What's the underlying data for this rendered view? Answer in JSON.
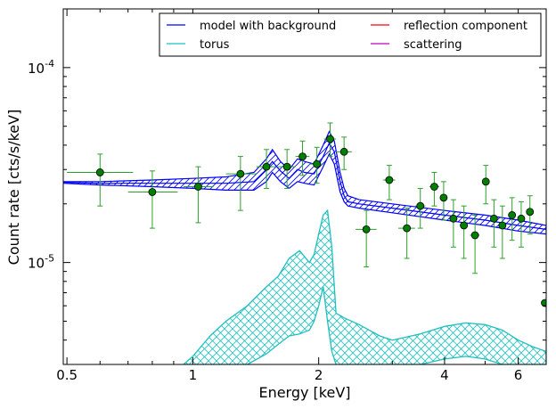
{
  "chart_data": {
    "type": "scatter",
    "xlabel": "Energy [keV]",
    "ylabel": "Count rate [cts/s/keV]",
    "x_scale": "log",
    "y_scale": "log",
    "xlim": [
      0.49,
      7.0
    ],
    "ylim": [
      3e-06,
      0.0002
    ],
    "x_ticks": [
      {
        "value": 0.5,
        "label": "0.5"
      },
      {
        "value": 1,
        "label": "1"
      },
      {
        "value": 2,
        "label": "2"
      },
      {
        "value": 4,
        "label": "4"
      },
      {
        "value": 6,
        "label": "6"
      }
    ],
    "y_ticks": [
      {
        "value": 0.0001,
        "base": "10",
        "exp": "-4"
      },
      {
        "value": 1e-05,
        "base": "10",
        "exp": "-5"
      }
    ],
    "legend": {
      "placement": "top-right",
      "columns": 2,
      "entries": [
        {
          "label": "model with background",
          "color": "#0000ff"
        },
        {
          "label": "reflection component",
          "color": "#ff0000"
        },
        {
          "label": "torus",
          "color": "#1fbfbf"
        },
        {
          "label": "scattering",
          "color": "#bf00bf"
        }
      ]
    },
    "colors": {
      "model": "#0000ff",
      "torus": "#1fbfbf",
      "data": "#008000",
      "errorbar": "#2ca02c"
    },
    "data_points": [
      {
        "x": 0.6,
        "y": 2.9e-05,
        "xlo": 0.5,
        "xhi": 0.72,
        "ylo": 1.95e-05,
        "yhi": 3.6e-05
      },
      {
        "x": 0.8,
        "y": 2.3e-05,
        "xlo": 0.7,
        "xhi": 0.92,
        "ylo": 1.5e-05,
        "yhi": 2.95e-05
      },
      {
        "x": 1.03,
        "y": 2.45e-05,
        "xlo": 0.95,
        "xhi": 1.12,
        "ylo": 1.6e-05,
        "yhi": 3.1e-05
      },
      {
        "x": 1.3,
        "y": 2.85e-05,
        "xlo": 1.2,
        "xhi": 1.42,
        "ylo": 1.85e-05,
        "yhi": 3.5e-05
      },
      {
        "x": 1.5,
        "y": 3.1e-05,
        "xlo": 1.42,
        "xhi": 1.58,
        "ylo": 2.4e-05,
        "yhi": 3.8e-05
      },
      {
        "x": 1.68,
        "y": 3.1e-05,
        "xlo": 1.6,
        "xhi": 1.76,
        "ylo": 2.4e-05,
        "yhi": 3.8e-05
      },
      {
        "x": 1.83,
        "y": 3.5e-05,
        "xlo": 1.76,
        "xhi": 1.9,
        "ylo": 2.8e-05,
        "yhi": 4.2e-05
      },
      {
        "x": 1.98,
        "y": 3.2e-05,
        "xlo": 1.9,
        "xhi": 2.06,
        "ylo": 2.55e-05,
        "yhi": 3.9e-05
      },
      {
        "x": 2.13,
        "y": 4.3e-05,
        "xlo": 2.06,
        "xhi": 2.2,
        "ylo": 3.5e-05,
        "yhi": 5.2e-05
      },
      {
        "x": 2.3,
        "y": 3.7e-05,
        "xlo": 2.2,
        "xhi": 2.4,
        "ylo": 3e-05,
        "yhi": 4.4e-05
      },
      {
        "x": 2.6,
        "y": 1.48e-05,
        "xlo": 2.45,
        "xhi": 2.75,
        "ylo": 9.5e-06,
        "yhi": 1.85e-05
      },
      {
        "x": 2.95,
        "y": 2.65e-05,
        "xlo": 2.85,
        "xhi": 3.05,
        "ylo": 2.1e-05,
        "yhi": 3.15e-05
      },
      {
        "x": 3.25,
        "y": 1.5e-05,
        "xlo": 3.1,
        "xhi": 3.4,
        "ylo": 1.05e-05,
        "yhi": 1.9e-05
      },
      {
        "x": 3.5,
        "y": 1.95e-05,
        "xlo": 3.4,
        "xhi": 3.6,
        "ylo": 1.5e-05,
        "yhi": 2.4e-05
      },
      {
        "x": 3.78,
        "y": 2.45e-05,
        "xlo": 3.68,
        "xhi": 3.88,
        "ylo": 1.95e-05,
        "yhi": 2.9e-05
      },
      {
        "x": 3.98,
        "y": 2.15e-05,
        "xlo": 3.9,
        "xhi": 4.06,
        "ylo": 1.65e-05,
        "yhi": 2.6e-05
      },
      {
        "x": 4.2,
        "y": 1.68e-05,
        "xlo": 4.1,
        "xhi": 4.3,
        "ylo": 1.2e-05,
        "yhi": 2.1e-05
      },
      {
        "x": 4.45,
        "y": 1.55e-05,
        "xlo": 4.35,
        "xhi": 4.55,
        "ylo": 1.05e-05,
        "yhi": 1.95e-05
      },
      {
        "x": 4.73,
        "y": 1.38e-05,
        "xlo": 4.6,
        "xhi": 4.85,
        "ylo": 8.8e-06,
        "yhi": 1.75e-05
      },
      {
        "x": 5.02,
        "y": 2.6e-05,
        "xlo": 4.95,
        "xhi": 5.1,
        "ylo": 2e-05,
        "yhi": 3.15e-05
      },
      {
        "x": 5.25,
        "y": 1.68e-05,
        "xlo": 5.15,
        "xhi": 5.35,
        "ylo": 1.2e-05,
        "yhi": 2.1e-05
      },
      {
        "x": 5.5,
        "y": 1.55e-05,
        "xlo": 5.4,
        "xhi": 5.6,
        "ylo": 1.05e-05,
        "yhi": 1.95e-05
      },
      {
        "x": 5.8,
        "y": 1.75e-05,
        "xlo": 5.7,
        "xhi": 5.9,
        "ylo": 1.3e-05,
        "yhi": 2.15e-05
      },
      {
        "x": 6.1,
        "y": 1.68e-05,
        "xlo": 6.0,
        "xhi": 6.2,
        "ylo": 1.2e-05,
        "yhi": 2.05e-05
      },
      {
        "x": 6.4,
        "y": 1.82e-05,
        "xlo": 6.3,
        "xhi": 6.5,
        "ylo": 1.4e-05,
        "yhi": 2.2e-05
      },
      {
        "x": 6.95,
        "y": 6.2e-06,
        "xlo": 6.9,
        "xhi": 7.0,
        "ylo": 6.2e-06,
        "yhi": 6.2e-06
      }
    ],
    "model_band": {
      "x": [
        0.49,
        0.6,
        0.8,
        1.0,
        1.2,
        1.4,
        1.5,
        1.55,
        1.62,
        1.7,
        1.78,
        1.85,
        1.95,
        2.05,
        2.12,
        2.18,
        2.25,
        2.3,
        2.35,
        2.5,
        3.0,
        4.0,
        5.0,
        6.0,
        7.0
      ],
      "lower": [
        2.55e-05,
        2.5e-05,
        2.45e-05,
        2.4e-05,
        2.35e-05,
        2.35e-05,
        2.6e-05,
        2.9e-05,
        2.6e-05,
        2.4e-05,
        2.6e-05,
        2.55e-05,
        2.5e-05,
        3.1e-05,
        3.6e-05,
        3.2e-05,
        2.3e-05,
        2.05e-05,
        1.95e-05,
        1.9e-05,
        1.8e-05,
        1.65e-05,
        1.55e-05,
        1.45e-05,
        1.4e-05
      ],
      "upper": [
        2.6e-05,
        2.6e-05,
        2.65e-05,
        2.7e-05,
        2.75e-05,
        2.9e-05,
        3.4e-05,
        3.8e-05,
        3.3e-05,
        3e-05,
        3.4e-05,
        3.3e-05,
        3.2e-05,
        4e-05,
        4.7e-05,
        4.2e-05,
        2.9e-05,
        2.4e-05,
        2.2e-05,
        2.1e-05,
        2e-05,
        1.85e-05,
        1.75e-05,
        1.65e-05,
        1.55e-05
      ]
    },
    "model_mid": {
      "x": [
        0.49,
        0.6,
        0.8,
        1.0,
        1.2,
        1.4,
        1.5,
        1.55,
        1.62,
        1.7,
        1.78,
        1.85,
        1.95,
        2.05,
        2.12,
        2.18,
        2.25,
        2.3,
        2.35,
        2.5,
        3.0,
        4.0,
        5.0,
        6.0,
        7.0
      ],
      "y": [
        2.58e-05,
        2.55e-05,
        2.55e-05,
        2.55e-05,
        2.55e-05,
        2.6e-05,
        3e-05,
        3.3e-05,
        2.95e-05,
        2.7e-05,
        3e-05,
        2.9e-05,
        2.85e-05,
        3.5e-05,
        4.1e-05,
        3.7e-05,
        2.6e-05,
        2.2e-05,
        2.05e-05,
        2e-05,
        1.9e-05,
        1.75e-05,
        1.65e-05,
        1.55e-05,
        1.48e-05
      ]
    },
    "torus_band": {
      "x": [
        0.95,
        1.0,
        1.1,
        1.2,
        1.35,
        1.5,
        1.6,
        1.7,
        1.8,
        1.9,
        1.95,
        2.0,
        2.05,
        2.1,
        2.15,
        2.2,
        2.3,
        2.5,
        2.8,
        3.0,
        3.5,
        4.0,
        4.5,
        5.0,
        5.5,
        6.0,
        6.5,
        7.0
      ],
      "lower": [
        3e-06,
        3e-06,
        3e-06,
        3e-06,
        3e-06,
        3.4e-06,
        3.8e-06,
        4.2e-06,
        4.3e-06,
        4.5e-06,
        5e-06,
        6e-06,
        7.5e-06,
        5e-06,
        3.5e-06,
        3e-06,
        3e-06,
        3e-06,
        3e-06,
        3e-06,
        3e-06,
        3.2e-06,
        3.3e-06,
        3.2e-06,
        3e-06,
        3e-06,
        3e-06,
        3e-06
      ],
      "upper": [
        3e-06,
        3.3e-06,
        4.2e-06,
        5e-06,
        6e-06,
        7.5e-06,
        8.5e-06,
        1.05e-05,
        1.15e-05,
        1e-05,
        1.1e-05,
        1.4e-05,
        1.75e-05,
        1.85e-05,
        1.2e-05,
        5.5e-06,
        5.2e-06,
        4.8e-06,
        4.2e-06,
        4e-06,
        4.3e-06,
        4.7e-06,
        4.9e-06,
        4.8e-06,
        4.5e-06,
        4e-06,
        3.7e-06,
        3.5e-06
      ]
    }
  }
}
